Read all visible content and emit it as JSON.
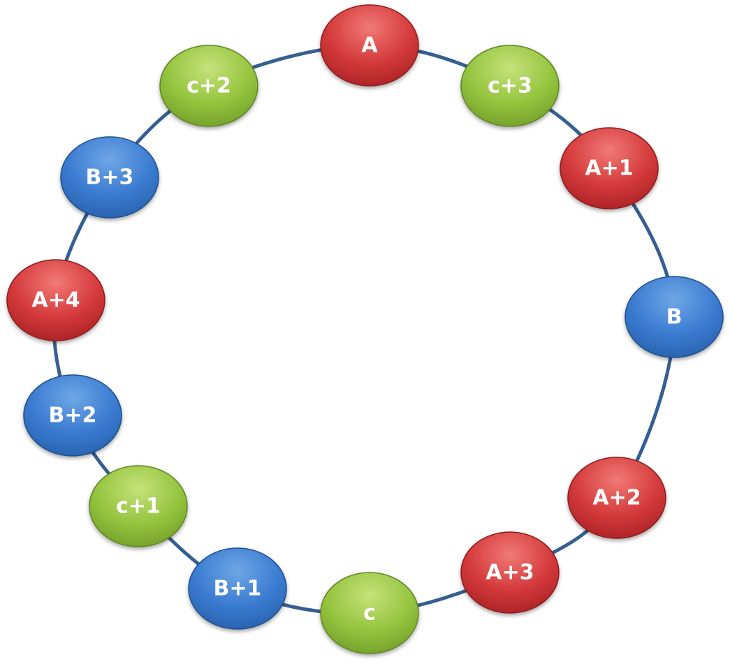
{
  "diagram": {
    "type": "ring",
    "ring_color": "#365f91",
    "palette": {
      "red": {
        "light": "#f07a76",
        "mid": "#d4393a",
        "dark": "#a51f22",
        "edge": "#8f1c1e"
      },
      "green": {
        "light": "#c5e27a",
        "mid": "#94c43e",
        "dark": "#6f9a27",
        "edge": "#5e8521"
      },
      "blue": {
        "light": "#6fa6e6",
        "mid": "#3a7bd0",
        "dark": "#265ea8",
        "edge": "#1f4f8f"
      }
    },
    "nodes": [
      {
        "id": "a",
        "label": "A",
        "color": "red"
      },
      {
        "id": "c3",
        "label": "c+3",
        "color": "green"
      },
      {
        "id": "a1",
        "label": "A+1",
        "color": "red"
      },
      {
        "id": "b",
        "label": "B",
        "color": "blue"
      },
      {
        "id": "a2",
        "label": "A+2",
        "color": "red"
      },
      {
        "id": "a3",
        "label": "A+3",
        "color": "red"
      },
      {
        "id": "c",
        "label": "c",
        "color": "green"
      },
      {
        "id": "b1",
        "label": "B+1",
        "color": "blue"
      },
      {
        "id": "c1",
        "label": "c+1",
        "color": "green"
      },
      {
        "id": "b2",
        "label": "B+2",
        "color": "blue"
      },
      {
        "id": "a4",
        "label": "A+4",
        "color": "red"
      },
      {
        "id": "b3",
        "label": "B+3",
        "color": "blue"
      },
      {
        "id": "c2",
        "label": "c+2",
        "color": "green"
      }
    ]
  }
}
